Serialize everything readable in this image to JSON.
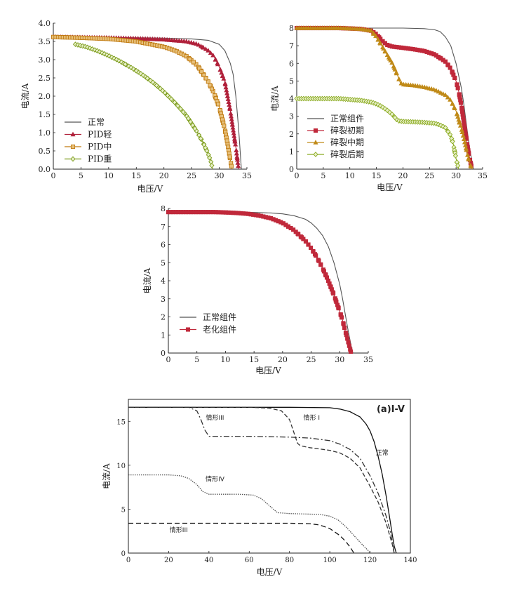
{
  "chart_data": [
    {
      "type": "line",
      "xlabel": "电压/V",
      "ylabel": "电流/A",
      "xlim": [
        0,
        35
      ],
      "ylim": [
        0,
        4.0
      ],
      "xticks": [
        0,
        5,
        10,
        15,
        20,
        25,
        30,
        35
      ],
      "yticks": [
        0.0,
        0.5,
        1.0,
        1.5,
        2.0,
        2.5,
        3.0,
        3.5,
        4.0
      ],
      "xtick_labels": [
        "0",
        "5",
        "10",
        "15",
        "20",
        "25",
        "30",
        "35"
      ],
      "ytick_labels": [
        "0.0",
        "0.5",
        "1.0",
        "1.5",
        "2.0",
        "2.5",
        "3.0",
        "3.5",
        "4.0"
      ],
      "legend_position": "bottom-left",
      "grid": false,
      "series": [
        {
          "name": "正常",
          "color": "#555555",
          "marker": "none",
          "x": [
            0,
            5,
            10,
            15,
            20,
            25,
            28,
            30,
            31,
            32,
            32.5,
            33,
            33.5,
            34
          ],
          "y": [
            3.63,
            3.62,
            3.61,
            3.6,
            3.59,
            3.57,
            3.53,
            3.42,
            3.25,
            2.9,
            2.6,
            2.0,
            1.1,
            0
          ]
        },
        {
          "name": "PID轻",
          "color": "#b0203a",
          "marker": "triangle",
          "x": [
            0,
            5,
            10,
            15,
            20,
            24,
            26,
            28,
            29,
            30,
            31,
            32,
            33,
            33.5
          ],
          "y": [
            3.62,
            3.61,
            3.6,
            3.58,
            3.55,
            3.5,
            3.43,
            3.25,
            3.1,
            2.8,
            2.4,
            1.6,
            0.6,
            0
          ]
        },
        {
          "name": "PID中",
          "color": "#c07a10",
          "marker": "square",
          "x": [
            0,
            5,
            10,
            15,
            20,
            22,
            24,
            26,
            28,
            29,
            30,
            31,
            31.5,
            32,
            32.3
          ],
          "y": [
            3.62,
            3.6,
            3.57,
            3.5,
            3.35,
            3.25,
            3.1,
            2.85,
            2.4,
            2.1,
            1.7,
            1.1,
            0.7,
            0.25,
            0
          ]
        },
        {
          "name": "PID重",
          "color": "#7a9a18",
          "marker": "diamond",
          "x": [
            4,
            6,
            8,
            10,
            12,
            14,
            16,
            18,
            20,
            22,
            24,
            26,
            27,
            28,
            28.5,
            28.8
          ],
          "y": [
            3.42,
            3.35,
            3.24,
            3.11,
            2.96,
            2.79,
            2.6,
            2.38,
            2.12,
            1.82,
            1.48,
            1.02,
            0.75,
            0.42,
            0.2,
            0
          ]
        }
      ]
    },
    {
      "type": "line",
      "xlabel": "电压/V",
      "ylabel": "电流/A",
      "xlim": [
        0,
        35
      ],
      "ylim": [
        0,
        8
      ],
      "xticks": [
        0,
        5,
        10,
        15,
        20,
        25,
        30,
        35
      ],
      "yticks": [
        0,
        1,
        2,
        3,
        4,
        5,
        6,
        7,
        8
      ],
      "xtick_labels": [
        "0",
        "5",
        "10",
        "15",
        "20",
        "25",
        "30",
        "35"
      ],
      "ytick_labels": [
        "0",
        "1",
        "2",
        "3",
        "4",
        "5",
        "6",
        "7",
        "8"
      ],
      "legend_position": "bottom-left",
      "grid": false,
      "series": [
        {
          "name": "正常组件",
          "color": "#555555",
          "marker": "none",
          "x": [
            0,
            5,
            10,
            15,
            20,
            24,
            26,
            27,
            28,
            29,
            30,
            31,
            31.5,
            32,
            32.5,
            33,
            33.3
          ],
          "y": [
            8.0,
            8.0,
            8.0,
            8.0,
            8.0,
            7.97,
            7.9,
            7.8,
            7.5,
            7.0,
            6.0,
            4.6,
            3.6,
            2.4,
            1.3,
            0.4,
            0
          ]
        },
        {
          "name": "碎裂初期",
          "color": "#c0283a",
          "marker": "square",
          "x": [
            0,
            8,
            12,
            14,
            15,
            16,
            17,
            18,
            20,
            22,
            24,
            26,
            28,
            29,
            30,
            30.5,
            31,
            31.5,
            32,
            32.5,
            33
          ],
          "y": [
            8.0,
            8.0,
            7.95,
            7.85,
            7.65,
            7.3,
            7.05,
            6.95,
            6.88,
            6.8,
            6.7,
            6.5,
            6.1,
            5.7,
            5.0,
            4.4,
            3.6,
            2.6,
            1.6,
            0.7,
            0
          ]
        },
        {
          "name": "碎裂中期",
          "color": "#c08a18",
          "marker": "triangle",
          "x": [
            0,
            8,
            12,
            14,
            15,
            16,
            17,
            18,
            19,
            19.5,
            20,
            22,
            24,
            26,
            28,
            29,
            30,
            31,
            31.5,
            32,
            32.5,
            33
          ],
          "y": [
            8.0,
            8.0,
            7.95,
            7.85,
            7.5,
            7.0,
            6.5,
            6.0,
            5.3,
            4.9,
            4.8,
            4.75,
            4.65,
            4.5,
            4.2,
            3.9,
            3.3,
            2.3,
            1.7,
            1.0,
            0.4,
            0
          ]
        },
        {
          "name": "碎裂后期",
          "color": "#8aaa20",
          "marker": "diamond",
          "x": [
            0,
            8,
            10,
            12,
            14,
            15,
            16,
            17,
            18,
            19,
            20,
            22,
            24,
            26,
            27,
            28,
            29,
            29.5,
            30,
            30.5
          ],
          "y": [
            4.0,
            4.0,
            3.95,
            3.9,
            3.8,
            3.7,
            3.55,
            3.35,
            3.1,
            2.75,
            2.7,
            2.68,
            2.65,
            2.6,
            2.5,
            2.35,
            1.9,
            1.4,
            0.6,
            0
          ]
        }
      ]
    },
    {
      "type": "line",
      "xlabel": "电压/V",
      "ylabel": "电流/A",
      "xlim": [
        0,
        35
      ],
      "ylim": [
        0,
        8
      ],
      "xticks": [
        0,
        5,
        10,
        15,
        20,
        25,
        30,
        35
      ],
      "yticks": [
        0,
        1,
        2,
        3,
        4,
        5,
        6,
        7,
        8
      ],
      "xtick_labels": [
        "0",
        "5",
        "10",
        "15",
        "20",
        "25",
        "30",
        "35"
      ],
      "ytick_labels": [
        "0",
        "1",
        "2",
        "3",
        "4",
        "5",
        "6",
        "7",
        "8"
      ],
      "legend_position": "bottom-left",
      "grid": false,
      "series": [
        {
          "name": "正常组件",
          "color": "#555555",
          "marker": "none",
          "x": [
            0,
            5,
            10,
            15,
            18,
            20,
            22,
            24,
            25,
            26,
            27,
            28,
            29,
            30,
            30.5,
            31,
            31.5,
            32,
            32.3
          ],
          "y": [
            7.8,
            7.8,
            7.8,
            7.78,
            7.75,
            7.7,
            7.6,
            7.4,
            7.2,
            6.9,
            6.5,
            5.9,
            5.0,
            3.8,
            3.0,
            2.1,
            1.2,
            0.4,
            0
          ]
        },
        {
          "name": "老化组件",
          "color": "#c0283a",
          "marker": "square",
          "x": [
            0,
            8,
            10,
            12,
            14,
            16,
            18,
            20,
            22,
            24,
            25,
            26,
            27,
            28,
            29,
            30,
            30.5,
            31,
            31.5,
            32
          ],
          "y": [
            7.8,
            7.8,
            7.78,
            7.75,
            7.7,
            7.6,
            7.45,
            7.2,
            6.8,
            6.2,
            5.8,
            5.3,
            4.7,
            4.0,
            3.2,
            2.3,
            1.8,
            1.2,
            0.6,
            0
          ]
        }
      ]
    },
    {
      "type": "line",
      "title": "(a)I-V",
      "xlabel": "电压/V",
      "ylabel": "电流/A",
      "xlim": [
        0,
        140
      ],
      "ylim": [
        0,
        17.5
      ],
      "xticks": [
        0,
        20,
        40,
        60,
        80,
        100,
        120,
        140
      ],
      "yticks": [
        0,
        5,
        10,
        15
      ],
      "xtick_labels": [
        "0",
        "20",
        "40",
        "60",
        "80",
        "100",
        "120",
        "140"
      ],
      "ytick_labels": [
        "0",
        "5",
        "10",
        "15"
      ],
      "grid": false,
      "annotations": [
        {
          "text": "情形III",
          "x": 43,
          "y": 15.2
        },
        {
          "text": "情形 I",
          "x": 91,
          "y": 15.2
        },
        {
          "text": "正常",
          "x": 126,
          "y": 11.2
        },
        {
          "text": "情形IV",
          "x": 43,
          "y": 8.2
        },
        {
          "text": "情形III",
          "x": 25,
          "y": 2.4
        }
      ],
      "series": [
        {
          "name": "正常",
          "color": "#111111",
          "dash": "solid",
          "x": [
            0,
            40,
            80,
            100,
            105,
            110,
            115,
            118,
            120,
            122,
            124,
            126,
            128,
            130,
            131,
            132,
            133
          ],
          "y": [
            16.6,
            16.6,
            16.6,
            16.55,
            16.4,
            16.1,
            15.5,
            14.7,
            13.9,
            12.7,
            11.0,
            9.0,
            6.5,
            3.6,
            2.1,
            0.8,
            0
          ]
        },
        {
          "name": "情形 I",
          "color": "#333333",
          "dash": "6,3",
          "x": [
            0,
            60,
            70,
            76,
            78,
            80,
            84,
            85,
            86,
            88,
            90,
            100,
            105,
            110,
            115,
            120,
            124,
            128,
            130,
            131,
            132
          ],
          "y": [
            16.6,
            16.6,
            16.5,
            16.2,
            15.7,
            15.2,
            12.5,
            12.3,
            12.2,
            12.1,
            12.0,
            11.7,
            11.4,
            10.8,
            9.7,
            7.6,
            5.8,
            3.4,
            1.8,
            1.0,
            0
          ]
        },
        {
          "name": "情形III",
          "color": "#333333",
          "dash": "8,3,2,3",
          "x": [
            0,
            30,
            34,
            36,
            38,
            40,
            60,
            80,
            90,
            100,
            105,
            110,
            115,
            120,
            124,
            128,
            130,
            131,
            132
          ],
          "y": [
            16.6,
            16.6,
            16.2,
            15.2,
            14.0,
            13.3,
            13.3,
            13.2,
            13.1,
            12.8,
            12.4,
            11.8,
            10.8,
            8.8,
            6.8,
            4.2,
            2.5,
            1.3,
            0
          ]
        },
        {
          "name": "情形IV",
          "color": "#555555",
          "dash": "1.5,1.5",
          "x": [
            0,
            20,
            26,
            30,
            34,
            37,
            40,
            55,
            62,
            66,
            70,
            74,
            80,
            95,
            100,
            104,
            108,
            112,
            116,
            119,
            120
          ],
          "y": [
            8.9,
            8.9,
            8.8,
            8.5,
            7.8,
            7.0,
            6.7,
            6.7,
            6.6,
            6.2,
            5.4,
            4.6,
            4.5,
            4.4,
            4.2,
            3.8,
            3.0,
            2.0,
            1.0,
            0.3,
            0
          ]
        },
        {
          "name": "情形III",
          "color": "#111111",
          "dash": "7,4",
          "x": [
            0,
            40,
            80,
            90,
            95,
            100,
            105,
            108,
            110,
            112
          ],
          "y": [
            3.4,
            3.4,
            3.4,
            3.35,
            3.2,
            2.8,
            2.0,
            1.3,
            0.7,
            0
          ]
        }
      ]
    }
  ]
}
